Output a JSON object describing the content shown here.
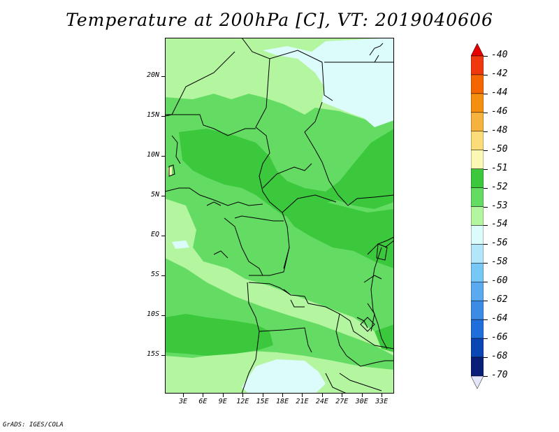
{
  "title": "Temperature at 200hPa [C], VT: 2019040606",
  "footer": "GrADS: IGES/COLA",
  "lat_axis": [
    {
      "label": "20N",
      "lat": 20
    },
    {
      "label": "15N",
      "lat": 15
    },
    {
      "label": "10N",
      "lat": 10
    },
    {
      "label": "5N",
      "lat": 5
    },
    {
      "label": "EQ",
      "lat": 0
    },
    {
      "label": "5S",
      "lat": -5
    },
    {
      "label": "10S",
      "lat": -10
    },
    {
      "label": "15S",
      "lat": -15
    }
  ],
  "lon_axis": [
    {
      "label": "3E",
      "lon": 3
    },
    {
      "label": "6E",
      "lon": 6
    },
    {
      "label": "9E",
      "lon": 9
    },
    {
      "label": "12E",
      "lon": 12
    },
    {
      "label": "15E",
      "lon": 15
    },
    {
      "label": "18E",
      "lon": 18
    },
    {
      "label": "21E",
      "lon": 21
    },
    {
      "label": "24E",
      "lon": 24
    },
    {
      "label": "27E",
      "lon": 27
    },
    {
      "label": "30E",
      "lon": 30
    },
    {
      "label": "33E",
      "lon": 33
    }
  ],
  "colorbar": {
    "labels": [
      "-40",
      "-42",
      "-44",
      "-46",
      "-48",
      "-50",
      "-51",
      "-52",
      "-53",
      "-54",
      "-56",
      "-58",
      "-60",
      "-62",
      "-64",
      "-66",
      "-68",
      "-70"
    ],
    "colors": [
      "#e6001e",
      "#f0380f",
      "#f56600",
      "#f58f0f",
      "#f5b23c",
      "#fbdc78",
      "#fcf7b4",
      "#3cc83c",
      "#64dc64",
      "#b4f5a0",
      "#dcfcfc",
      "#b4e6fa",
      "#78c8f5",
      "#5aaaf0",
      "#3c8ce6",
      "#1e6edc",
      "#0a46b4",
      "#0a1e78",
      "#000064"
    ],
    "top_arrow_color": "#e60000",
    "bottom_arrow_color": "#e6e6fa"
  },
  "map_colors": {
    "lv_minus51": "#fcf7b4",
    "lv_minus52": "#3cc83c",
    "lv_minus53": "#64dc64",
    "lv_minus54": "#b4f5a0",
    "lv_minus56": "#dcfcfc",
    "boundary": "#000000"
  }
}
